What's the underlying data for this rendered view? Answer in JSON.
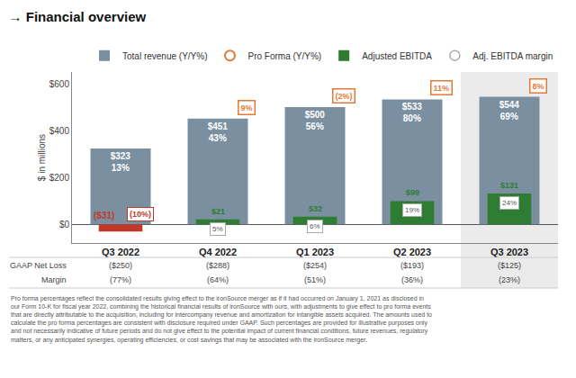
{
  "chart_data": {
    "type": "bar",
    "title": "→ Financial overview",
    "categories": [
      "Q3 2022",
      "Q4 2022",
      "Q1 2023",
      "Q2 2023",
      "Q3 2023"
    ],
    "series": [
      {
        "name": "Total revenue (Y/Y%)",
        "color": "#7a8fa0",
        "values": [
          323,
          451,
          500,
          533,
          544
        ],
        "value_labels": [
          "$323",
          "$451",
          "$500",
          "$533",
          "$544"
        ],
        "yoy": [
          "13%",
          "43%",
          "56%",
          "80%",
          "69%"
        ]
      },
      {
        "name": "Adjusted EBITDA",
        "color": "#2e7d32",
        "colors": [
          "#c0392b",
          "#2e7d32",
          "#2e7d32",
          "#2e7d32",
          "#2e7d32"
        ],
        "values": [
          -31,
          21,
          32,
          99,
          131
        ],
        "value_labels": [
          "($31)",
          "$21",
          "$32",
          "$99",
          "$131"
        ]
      }
    ],
    "ebitda_margin": {
      "name": "Adj. EBITDA margin",
      "labels": [
        "(10%)",
        "5%",
        "6%",
        "19%",
        "24%"
      ]
    },
    "pro_forma": {
      "name": "Pro Forma (Y/Y%)",
      "color": "#e07b39",
      "labels": [
        null,
        "9%",
        "(2%)",
        "11%",
        "8%"
      ]
    },
    "highlight": {
      "category": "Q3 2023",
      "color": "#ebebeb"
    },
    "table": [
      {
        "label": "GAAP Net Loss",
        "values": [
          "($250)",
          "($288)",
          "($254)",
          "($193)",
          "($125)"
        ]
      },
      {
        "label": "Margin",
        "values": [
          "(77%)",
          "(64%)",
          "(51%)",
          "(36%)",
          "(23%)"
        ]
      }
    ],
    "ylabel": "$ in millions",
    "ylim": [
      -80,
      650
    ],
    "yticks": [
      {
        "value": 0,
        "label": "$0"
      },
      {
        "value": 200,
        "label": "$200"
      },
      {
        "value": 400,
        "label": "$400"
      },
      {
        "value": 600,
        "label": "$600"
      }
    ],
    "grid": false,
    "legend": "top right",
    "data_labels": true,
    "footnote": "Pro forma percentages reflect the consolidated results giving effect to the ironSource merger as if it had occurred on January 1, 2021 as disclosed in\nour Form 10-K for fiscal year 2022, combining the historical financial results of ironSource with ours, with adjustments to give effect to pro forma events\nthat are directly attributable to the acquisition, including for intercompany revenue and amortization for intangible assets acquired. The amounts used to\ncalculate the pro forma percentages are consistent with disclosure required under GAAP. Such percentages are provided for illustrative purposes only\nand not necessarily indicative of future periods and do not give effect to the potential impact of current financial conditions, future revenues, regulatory\nmatters, or any anticipated synergies, operating efficiencies, or cost savings that may be associated with the ironSource merger."
  }
}
